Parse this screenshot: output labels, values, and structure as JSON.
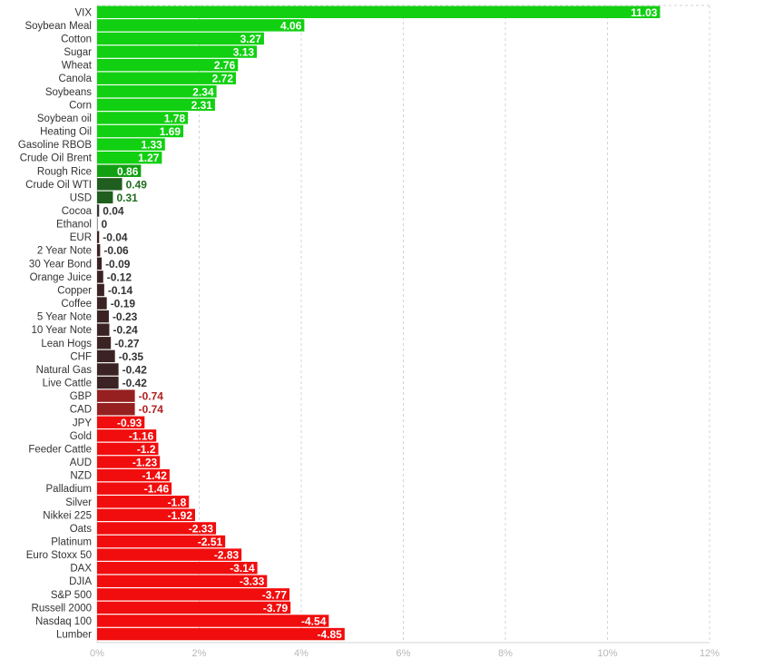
{
  "chart_data": {
    "type": "bar",
    "orientation": "horizontal",
    "title": "",
    "xlabel": "",
    "ylabel": "",
    "xlim": [
      0,
      12
    ],
    "x_ticks": [
      "0%",
      "2%",
      "4%",
      "6%",
      "8%",
      "10%",
      "12%"
    ],
    "grid": true,
    "value_scale": "absolute",
    "categories": [
      "VIX",
      "Soybean Meal",
      "Cotton",
      "Sugar",
      "Wheat",
      "Canola",
      "Soybeans",
      "Corn",
      "Soybean oil",
      "Heating Oil",
      "Gasoline RBOB",
      "Crude Oil Brent",
      "Rough Rice",
      "Crude Oil WTI",
      "USD",
      "Cocoa",
      "Ethanol",
      "EUR",
      "2 Year Note",
      "30 Year Bond",
      "Orange Juice",
      "Copper",
      "Coffee",
      "5 Year Note",
      "10 Year Note",
      "Lean Hogs",
      "CHF",
      "Natural Gas",
      "Live Cattle",
      "GBP",
      "CAD",
      "JPY",
      "Gold",
      "Feeder Cattle",
      "AUD",
      "NZD",
      "Palladium",
      "Silver",
      "Nikkei 225",
      "Oats",
      "Platinum",
      "Euro Stoxx 50",
      "DAX",
      "DJIA",
      "S&P 500",
      "Russell 2000",
      "Nasdaq 100",
      "Lumber"
    ],
    "values": [
      11.03,
      4.06,
      3.27,
      3.13,
      2.76,
      2.72,
      2.34,
      2.31,
      1.78,
      1.69,
      1.33,
      1.27,
      0.86,
      0.49,
      0.31,
      0.04,
      0,
      -0.04,
      -0.06,
      -0.09,
      -0.12,
      -0.14,
      -0.19,
      -0.23,
      -0.24,
      -0.27,
      -0.35,
      -0.42,
      -0.42,
      -0.74,
      -0.74,
      -0.93,
      -1.16,
      -1.2,
      -1.23,
      -1.42,
      -1.46,
      -1.8,
      -1.92,
      -2.33,
      -2.51,
      -2.83,
      -3.14,
      -3.33,
      -3.77,
      -3.79,
      -4.54,
      -4.85
    ],
    "value_labels": [
      "11.03",
      "4.06",
      "3.27",
      "3.13",
      "2.76",
      "2.72",
      "2.34",
      "2.31",
      "1.78",
      "1.69",
      "1.33",
      "1.27",
      "0.86",
      "0.49",
      "0.31",
      "0.04",
      "0",
      "-0.04",
      "-0.06",
      "-0.09",
      "-0.12",
      "-0.14",
      "-0.19",
      "-0.23",
      "-0.24",
      "-0.27",
      "-0.35",
      "-0.42",
      "-0.42",
      "-0.74",
      "-0.74",
      "-0.93",
      "-1.16",
      "-1.2",
      "-1.23",
      "-1.42",
      "-1.46",
      "-1.8",
      "-1.92",
      "-2.33",
      "-2.51",
      "-2.83",
      "-3.14",
      "-3.33",
      "-3.77",
      "-3.79",
      "-4.54",
      "-4.85"
    ],
    "colors": {
      "positive_strong": "#11d011",
      "positive_mid": "#12a012",
      "positive_weak": "#1f5e1f",
      "negative_weak": "#3b2323",
      "negative_mid": "#962020",
      "negative_strong": "#f10d0d",
      "label_dark": "#333333",
      "label_green": "#1e6b1e",
      "label_red": "#b02020",
      "grid": "#d4d4d4",
      "tick_text": "#b8b8b8"
    }
  }
}
